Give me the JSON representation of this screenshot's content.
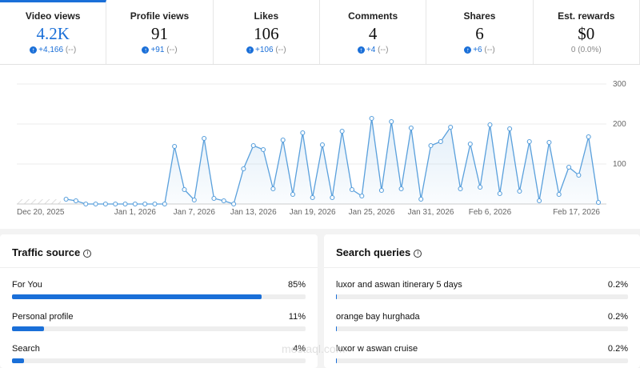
{
  "tabs": [
    {
      "label": "Video views",
      "value": "4.2K",
      "change": "+4,166",
      "compare": "(--)"
    },
    {
      "label": "Profile views",
      "value": "91",
      "change": "+91",
      "compare": "(--)"
    },
    {
      "label": "Likes",
      "value": "106",
      "change": "+106",
      "compare": "(--)"
    },
    {
      "label": "Comments",
      "value": "4",
      "change": "+4",
      "compare": "(--)"
    },
    {
      "label": "Shares",
      "value": "6",
      "change": "+6",
      "compare": "(--)"
    },
    {
      "label": "Est. rewards",
      "value": "$0",
      "change": "0 (0.0%)"
    }
  ],
  "chart_data": {
    "type": "line",
    "categories": [
      "Dec 20, 2025",
      null,
      null,
      null,
      null,
      null,
      null,
      null,
      null,
      null,
      null,
      null,
      "Jan 1, 2026",
      null,
      null,
      null,
      null,
      null,
      "Jan 7, 2026",
      null,
      null,
      null,
      null,
      null,
      "Jan 13, 2026",
      null,
      null,
      null,
      null,
      null,
      "Jan 19, 2026",
      null,
      null,
      null,
      null,
      null,
      "Jan 25, 2026",
      null,
      null,
      null,
      null,
      null,
      "Jan 31, 2026",
      null,
      null,
      null,
      null,
      null,
      "Feb 6, 2026",
      null,
      null,
      null,
      null,
      null,
      null,
      null,
      null,
      null,
      null,
      "Feb 17, 2026"
    ],
    "series": [
      {
        "color": "#5aa0dc",
        "values": [
          null,
          null,
          null,
          null,
          null,
          12,
          8,
          0,
          0,
          0,
          0,
          0,
          0,
          0,
          0,
          0,
          144,
          36,
          10,
          164,
          14,
          8,
          0,
          88,
          146,
          136,
          38,
          160,
          24,
          178,
          16,
          148,
          16,
          182,
          36,
          20,
          214,
          34,
          206,
          38,
          190,
          12,
          146,
          156,
          192,
          38,
          150,
          42,
          198,
          26,
          188,
          32,
          156,
          8,
          154,
          24,
          92,
          72,
          168,
          4
        ]
      }
    ],
    "ylim": [
      0,
      300
    ],
    "yticks": [
      100,
      200,
      300
    ],
    "grid": true
  },
  "traffic_source": {
    "title": "Traffic source",
    "names": [
      "For You",
      "Personal profile",
      "Search"
    ],
    "values": [
      85,
      11,
      4
    ],
    "value_labels": [
      "85%",
      "11%",
      "4%"
    ]
  },
  "search_queries": {
    "title": "Search queries",
    "names": [
      "luxor and aswan itinerary 5 days",
      "orange bay hurghada",
      "luxor w aswan cruise"
    ],
    "values": [
      0.2,
      0.2,
      0.2
    ],
    "value_labels": [
      "0.2%",
      "0.2%",
      "0.2%"
    ]
  },
  "watermark": "mostaql.com"
}
